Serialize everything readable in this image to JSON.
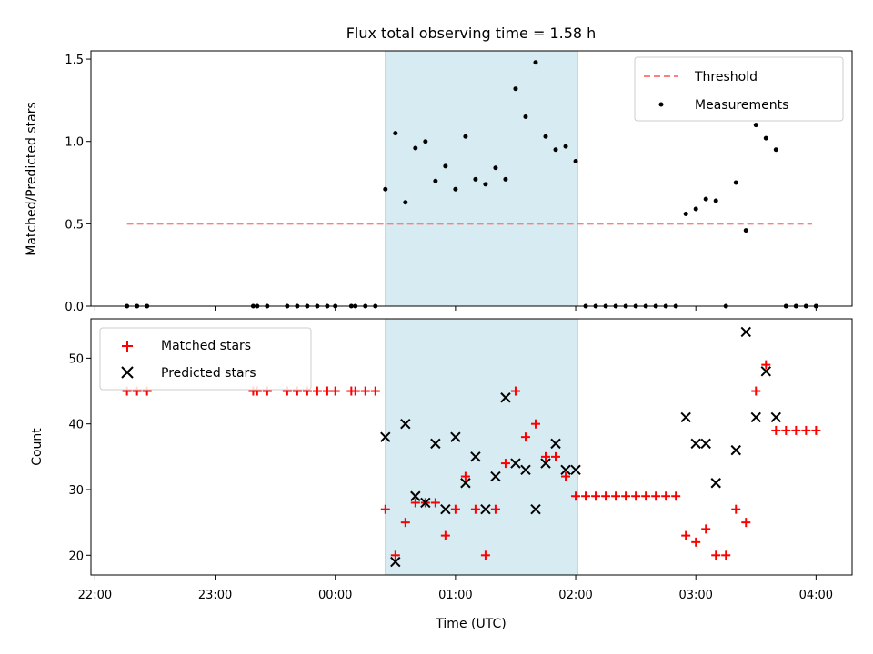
{
  "chart_data": [
    {
      "type": "scatter",
      "title": "Flux total observing time = 1.58 h",
      "xlabel": "",
      "ylabel": "Matched/Predicted stars",
      "xlim": [
        "21:58",
        "04:18"
      ],
      "ylim": [
        0,
        1.55
      ],
      "yticks": [
        "0.0",
        "0.5",
        "1.0",
        "1.5"
      ],
      "shaded_interval": [
        "00:25",
        "02:01"
      ],
      "shade_color": "#add8e6",
      "legend": {
        "placement": "top-right",
        "entries": [
          "Threshold",
          "Measurements"
        ]
      },
      "threshold": {
        "name": "Threshold",
        "value": 0.5,
        "x_range": [
          "22:16",
          "03:58"
        ],
        "color": "#ff7f7f",
        "style": "dashed"
      },
      "series": [
        {
          "name": "Measurements",
          "color": "#000000",
          "marker": "dot",
          "points": [
            [
              "22:16",
              0
            ],
            [
              "22:21",
              0
            ],
            [
              "22:26",
              0
            ],
            [
              "23:19",
              0
            ],
            [
              "23:21",
              0
            ],
            [
              "23:26",
              0
            ],
            [
              "23:36",
              0
            ],
            [
              "23:41",
              0
            ],
            [
              "23:46",
              0
            ],
            [
              "23:51",
              0
            ],
            [
              "23:56",
              0
            ],
            [
              "00:00",
              0
            ],
            [
              "00:08",
              0
            ],
            [
              "00:10",
              0
            ],
            [
              "00:15",
              0
            ],
            [
              "00:20",
              0
            ],
            [
              "00:25",
              0.71
            ],
            [
              "00:30",
              1.05
            ],
            [
              "00:35",
              0.63
            ],
            [
              "00:40",
              0.96
            ],
            [
              "00:45",
              1.0
            ],
            [
              "00:50",
              0.76
            ],
            [
              "00:55",
              0.85
            ],
            [
              "01:00",
              0.71
            ],
            [
              "01:05",
              1.03
            ],
            [
              "01:10",
              0.77
            ],
            [
              "01:15",
              0.74
            ],
            [
              "01:20",
              0.84
            ],
            [
              "01:25",
              0.77
            ],
            [
              "01:30",
              1.32
            ],
            [
              "01:35",
              1.15
            ],
            [
              "01:40",
              1.48
            ],
            [
              "01:45",
              1.03
            ],
            [
              "01:50",
              0.95
            ],
            [
              "01:55",
              0.97
            ],
            [
              "02:00",
              0.88
            ],
            [
              "02:05",
              0
            ],
            [
              "02:10",
              0
            ],
            [
              "02:15",
              0
            ],
            [
              "02:20",
              0
            ],
            [
              "02:25",
              0
            ],
            [
              "02:30",
              0
            ],
            [
              "02:35",
              0
            ],
            [
              "02:40",
              0
            ],
            [
              "02:45",
              0
            ],
            [
              "02:50",
              0
            ],
            [
              "02:55",
              0.56
            ],
            [
              "03:00",
              0.59
            ],
            [
              "03:05",
              0.65
            ],
            [
              "03:10",
              0.64
            ],
            [
              "03:15",
              0
            ],
            [
              "03:20",
              0.75
            ],
            [
              "03:25",
              0.46
            ],
            [
              "03:30",
              1.1
            ],
            [
              "03:35",
              1.02
            ],
            [
              "03:40",
              0.95
            ],
            [
              "03:45",
              0
            ],
            [
              "03:50",
              0
            ],
            [
              "03:55",
              0
            ],
            [
              "04:00",
              0
            ]
          ]
        }
      ]
    },
    {
      "type": "scatter",
      "title": "",
      "xlabel": "Time (UTC)",
      "ylabel": "Count",
      "xlim": [
        "21:58",
        "04:18"
      ],
      "ylim": [
        17,
        56
      ],
      "xticks": [
        "22:00",
        "23:00",
        "00:00",
        "01:00",
        "02:00",
        "03:00",
        "04:00"
      ],
      "yticks": [
        "20",
        "30",
        "40",
        "50"
      ],
      "shaded_interval": [
        "00:25",
        "02:01"
      ],
      "shade_color": "#add8e6",
      "legend": {
        "placement": "top-left",
        "entries": [
          "Matched stars",
          "Predicted stars"
        ]
      },
      "series": [
        {
          "name": "Matched stars",
          "color": "#ff0000",
          "marker": "plus",
          "points": [
            [
              "22:16",
              45
            ],
            [
              "22:21",
              45
            ],
            [
              "22:26",
              45
            ],
            [
              "23:19",
              45
            ],
            [
              "23:21",
              45
            ],
            [
              "23:26",
              45
            ],
            [
              "23:36",
              45
            ],
            [
              "23:41",
              45
            ],
            [
              "23:46",
              45
            ],
            [
              "23:51",
              45
            ],
            [
              "23:56",
              45
            ],
            [
              "00:00",
              45
            ],
            [
              "00:08",
              45
            ],
            [
              "00:10",
              45
            ],
            [
              "00:15",
              45
            ],
            [
              "00:20",
              45
            ],
            [
              "00:25",
              27
            ],
            [
              "00:30",
              20
            ],
            [
              "00:35",
              25
            ],
            [
              "00:40",
              28
            ],
            [
              "00:45",
              28
            ],
            [
              "00:50",
              28
            ],
            [
              "00:55",
              23
            ],
            [
              "01:00",
              27
            ],
            [
              "01:05",
              32
            ],
            [
              "01:10",
              27
            ],
            [
              "01:15",
              20
            ],
            [
              "01:20",
              27
            ],
            [
              "01:25",
              34
            ],
            [
              "01:30",
              45
            ],
            [
              "01:35",
              38
            ],
            [
              "01:40",
              40
            ],
            [
              "01:45",
              35
            ],
            [
              "01:50",
              35
            ],
            [
              "01:55",
              32
            ],
            [
              "02:00",
              29
            ],
            [
              "02:05",
              29
            ],
            [
              "02:10",
              29
            ],
            [
              "02:15",
              29
            ],
            [
              "02:20",
              29
            ],
            [
              "02:25",
              29
            ],
            [
              "02:30",
              29
            ],
            [
              "02:35",
              29
            ],
            [
              "02:40",
              29
            ],
            [
              "02:45",
              29
            ],
            [
              "02:50",
              29
            ],
            [
              "02:55",
              23
            ],
            [
              "03:00",
              22
            ],
            [
              "03:05",
              24
            ],
            [
              "03:10",
              20
            ],
            [
              "03:15",
              20
            ],
            [
              "03:20",
              27
            ],
            [
              "03:25",
              25
            ],
            [
              "03:30",
              45
            ],
            [
              "03:35",
              49
            ],
            [
              "03:40",
              39
            ],
            [
              "03:45",
              39
            ],
            [
              "03:50",
              39
            ],
            [
              "03:55",
              39
            ],
            [
              "04:00",
              39
            ]
          ]
        },
        {
          "name": "Predicted stars",
          "color": "#000000",
          "marker": "x",
          "points": [
            [
              "00:25",
              38
            ],
            [
              "00:30",
              19
            ],
            [
              "00:35",
              40
            ],
            [
              "00:40",
              29
            ],
            [
              "00:45",
              28
            ],
            [
              "00:50",
              37
            ],
            [
              "00:55",
              27
            ],
            [
              "01:00",
              38
            ],
            [
              "01:05",
              31
            ],
            [
              "01:10",
              35
            ],
            [
              "01:15",
              27
            ],
            [
              "01:20",
              32
            ],
            [
              "01:25",
              44
            ],
            [
              "01:30",
              34
            ],
            [
              "01:35",
              33
            ],
            [
              "01:40",
              27
            ],
            [
              "01:45",
              34
            ],
            [
              "01:50",
              37
            ],
            [
              "01:55",
              33
            ],
            [
              "02:00",
              33
            ],
            [
              "02:55",
              41
            ],
            [
              "03:00",
              37
            ],
            [
              "03:05",
              37
            ],
            [
              "03:10",
              31
            ],
            [
              "03:20",
              36
            ],
            [
              "03:25",
              54
            ],
            [
              "03:30",
              41
            ],
            [
              "03:35",
              48
            ],
            [
              "03:40",
              41
            ]
          ]
        }
      ]
    }
  ]
}
